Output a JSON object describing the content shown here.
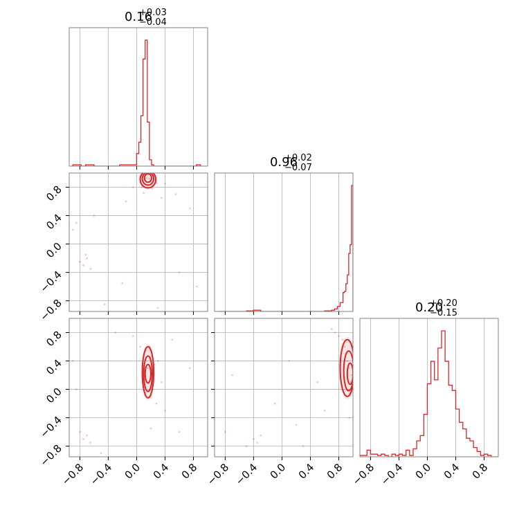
{
  "chart_data": {
    "type": "corner",
    "color": "#d62728",
    "parameter_range": [
      -0.95,
      1.0
    ],
    "tick_labels": [
      "−0.8",
      "−0.4",
      "0.0",
      "0.4",
      "0.8"
    ],
    "tick_values": [
      -0.8,
      -0.4,
      0.0,
      0.4,
      0.8
    ],
    "grid": true,
    "parameters": [
      {
        "title_value": "0.16",
        "title_plus": "+0.03",
        "title_minus": "−0.04"
      },
      {
        "title_value": "0.96",
        "title_plus": "+0.02",
        "title_minus": "−0.07"
      },
      {
        "title_value": "0.20",
        "title_plus": "+0.20",
        "title_minus": "−0.15"
      }
    ],
    "histograms": [
      {
        "param_index": 0,
        "bin_edges": [
          -0.9,
          -0.84,
          -0.78,
          -0.72,
          -0.66,
          -0.6,
          -0.54,
          -0.48,
          -0.42,
          -0.36,
          -0.3,
          -0.24,
          -0.18,
          -0.12,
          -0.06,
          0.0,
          0.03,
          0.06,
          0.09,
          0.12,
          0.15,
          0.18,
          0.21,
          0.24,
          0.27,
          0.3,
          0.36,
          0.42,
          0.48,
          0.54,
          0.6,
          0.66,
          0.72,
          0.78,
          0.84,
          0.9
        ],
        "counts": [
          0.01,
          0.01,
          0.0,
          0.01,
          0.01,
          0.0,
          0.0,
          0.0,
          0.0,
          0.0,
          0.0,
          0.01,
          0.01,
          0.01,
          0.01,
          0.1,
          0.19,
          0.4,
          0.85,
          1.0,
          0.35,
          0.05,
          0.01,
          0.0,
          0.0,
          0.0,
          0.0,
          0.0,
          0.0,
          0.0,
          0.0,
          0.0,
          0.0,
          0.0,
          0.01
        ]
      },
      {
        "param_index": 1,
        "bin_edges": [
          -0.9,
          -0.8,
          -0.7,
          -0.6,
          -0.5,
          -0.4,
          -0.3,
          -0.2,
          -0.1,
          0.0,
          0.1,
          0.2,
          0.3,
          0.4,
          0.5,
          0.6,
          0.7,
          0.74,
          0.78,
          0.82,
          0.86,
          0.88,
          0.9,
          0.92,
          0.94,
          0.96,
          0.98,
          1.0
        ],
        "counts": [
          0.0,
          0.0,
          0.0,
          0.0,
          0.005,
          0.01,
          0.0,
          0.0,
          0.0,
          0.0,
          0.0,
          0.0,
          0.0,
          0.0,
          0.0,
          0.005,
          0.01,
          0.02,
          0.04,
          0.07,
          0.15,
          0.16,
          0.22,
          0.29,
          0.46,
          0.53,
          1.0
        ]
      },
      {
        "param_index": 2,
        "bin_edges": [
          -0.95,
          -0.9,
          -0.85,
          -0.8,
          -0.75,
          -0.7,
          -0.65,
          -0.6,
          -0.55,
          -0.5,
          -0.45,
          -0.4,
          -0.35,
          -0.3,
          -0.25,
          -0.2,
          -0.15,
          -0.1,
          -0.05,
          0.0,
          0.05,
          0.1,
          0.15,
          0.2,
          0.25,
          0.3,
          0.35,
          0.4,
          0.45,
          0.5,
          0.55,
          0.6,
          0.65,
          0.7,
          0.75,
          0.8,
          0.85,
          0.9,
          0.95,
          1.0
        ],
        "counts": [
          0.01,
          0.01,
          0.05,
          0.02,
          0.02,
          0.01,
          0.02,
          0.01,
          0.0,
          0.02,
          0.01,
          0.02,
          0.01,
          0.05,
          0.01,
          0.06,
          0.12,
          0.16,
          0.32,
          0.55,
          0.72,
          0.58,
          0.82,
          0.95,
          0.72,
          0.54,
          0.5,
          0.36,
          0.26,
          0.21,
          0.14,
          0.12,
          0.07,
          0.04,
          0.01,
          0.02,
          0.01,
          0.0,
          0.0
        ]
      }
    ],
    "joint_panels": [
      {
        "x_param": 0,
        "y_param": 1,
        "samples": [
          [
            0.18,
            0.92
          ],
          [
            0.2,
            0.88
          ],
          [
            0.14,
            0.93
          ],
          [
            0.11,
            0.91
          ],
          [
            0.25,
            0.95
          ],
          [
            0.16,
            0.83
          ],
          [
            0.07,
            0.8
          ],
          [
            0.28,
            0.86
          ],
          [
            0.22,
            0.78
          ],
          [
            0.05,
            0.95
          ],
          [
            0.4,
            0.85
          ],
          [
            -0.05,
            0.8
          ],
          [
            0.1,
            0.72
          ],
          [
            0.35,
            0.65
          ],
          [
            -0.15,
            0.6
          ],
          [
            0.55,
            0.7
          ],
          [
            -0.7,
            -0.2
          ],
          [
            -0.75,
            -0.3
          ],
          [
            -0.8,
            -0.25
          ],
          [
            -0.65,
            -0.35
          ],
          [
            -0.72,
            -0.15
          ],
          [
            -0.85,
            0.3
          ],
          [
            -0.6,
            0.4
          ],
          [
            -0.9,
            0.2
          ],
          [
            -0.2,
            -0.55
          ],
          [
            0.6,
            -0.4
          ],
          [
            0.85,
            -0.6
          ],
          [
            -0.45,
            -0.85
          ],
          [
            0.3,
            -0.9
          ],
          [
            0.75,
            0.5
          ]
        ],
        "contours": [
          {
            "cx": 0.16,
            "cy": 0.93,
            "rx": 0.05,
            "ry": 0.06
          },
          {
            "cx": 0.16,
            "cy": 0.92,
            "rx": 0.08,
            "ry": 0.09
          },
          {
            "cx": 0.16,
            "cy": 0.91,
            "rx": 0.11,
            "ry": 0.12
          }
        ]
      },
      {
        "x_param": 0,
        "y_param": 2,
        "samples": [
          [
            0.16,
            0.3
          ],
          [
            0.14,
            0.1
          ],
          [
            0.19,
            0.45
          ],
          [
            0.12,
            -0.05
          ],
          [
            0.22,
            0.2
          ],
          [
            0.18,
            0.6
          ],
          [
            0.13,
            0.55
          ],
          [
            0.2,
            -0.1
          ],
          [
            0.25,
            0.35
          ],
          [
            0.1,
            0.25
          ],
          [
            0.28,
            -0.2
          ],
          [
            0.3,
            0.4
          ],
          [
            0.05,
            0.6
          ],
          [
            0.35,
            0.1
          ],
          [
            -0.05,
            0.75
          ],
          [
            0.4,
            -0.3
          ],
          [
            -0.75,
            -0.7
          ],
          [
            -0.7,
            -0.65
          ],
          [
            -0.8,
            -0.6
          ],
          [
            -0.65,
            -0.75
          ],
          [
            -0.9,
            0.4
          ],
          [
            -0.3,
            0.8
          ],
          [
            0.6,
            -0.6
          ],
          [
            0.75,
            0.3
          ],
          [
            -0.5,
            -0.9
          ],
          [
            0.5,
            0.7
          ],
          [
            -0.85,
            0.0
          ],
          [
            0.2,
            -0.55
          ]
        ],
        "contours": [
          {
            "cx": 0.16,
            "cy": 0.22,
            "rx": 0.04,
            "ry": 0.13
          },
          {
            "cx": 0.16,
            "cy": 0.22,
            "rx": 0.06,
            "ry": 0.25
          },
          {
            "cx": 0.16,
            "cy": 0.24,
            "rx": 0.08,
            "ry": 0.36
          }
        ]
      },
      {
        "x_param": 1,
        "y_param": 2,
        "samples": [
          [
            0.9,
            0.5
          ],
          [
            0.94,
            0.3
          ],
          [
            0.97,
            0.1
          ],
          [
            0.88,
            0.6
          ],
          [
            0.85,
            0.7
          ],
          [
            0.92,
            0.4
          ],
          [
            0.96,
            -0.05
          ],
          [
            0.8,
            0.75
          ],
          [
            0.75,
            0.8
          ],
          [
            0.98,
            0.2
          ],
          [
            0.7,
            0.85
          ],
          [
            0.6,
            -0.3
          ],
          [
            -0.4,
            -0.7
          ],
          [
            -0.35,
            -0.75
          ],
          [
            -0.3,
            -0.65
          ],
          [
            -0.5,
            -0.8
          ],
          [
            -0.8,
            -0.6
          ],
          [
            0.1,
            0.4
          ],
          [
            -0.1,
            -0.2
          ],
          [
            0.3,
            -0.8
          ],
          [
            -0.7,
            0.2
          ],
          [
            0.5,
            0.1
          ],
          [
            0.95,
            -0.4
          ],
          [
            0.2,
            -0.5
          ]
        ],
        "contours": [
          {
            "cx": 0.96,
            "cy": 0.22,
            "rx": 0.04,
            "ry": 0.15
          },
          {
            "cx": 0.94,
            "cy": 0.26,
            "rx": 0.07,
            "ry": 0.28
          },
          {
            "cx": 0.92,
            "cy": 0.3,
            "rx": 0.1,
            "ry": 0.4
          }
        ]
      }
    ]
  }
}
